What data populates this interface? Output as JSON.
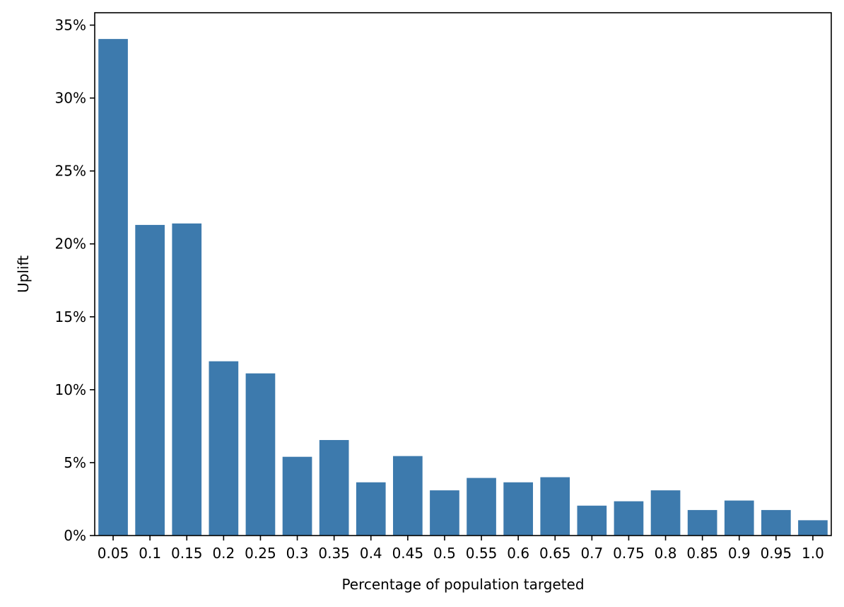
{
  "chart_data": {
    "type": "bar",
    "title": "",
    "xlabel": "Percentage of population targeted",
    "ylabel": "Uplift",
    "categories": [
      "0.05",
      "0.1",
      "0.15",
      "0.2",
      "0.25",
      "0.3",
      "0.35",
      "0.4",
      "0.45",
      "0.5",
      "0.55",
      "0.6",
      "0.65",
      "0.7",
      "0.75",
      "0.8",
      "0.85",
      "0.9",
      "0.95",
      "1.0"
    ],
    "values": [
      0.3405,
      0.213,
      0.214,
      0.1195,
      0.1112,
      0.054,
      0.0655,
      0.0365,
      0.0545,
      0.031,
      0.0395,
      0.0365,
      0.04,
      0.0205,
      0.0235,
      0.031,
      0.0175,
      0.024,
      0.0175,
      0.0105
    ],
    "ylim": [
      0,
      0.3585
    ],
    "yticks": [
      0,
      0.05,
      0.1,
      0.15,
      0.2,
      0.25,
      0.3,
      0.35
    ],
    "ytick_labels": [
      "0%",
      "5%",
      "10%",
      "15%",
      "20%",
      "25%",
      "30%",
      "35%"
    ],
    "bar_color": "#3d7aad",
    "grid": false,
    "legend": "none"
  }
}
